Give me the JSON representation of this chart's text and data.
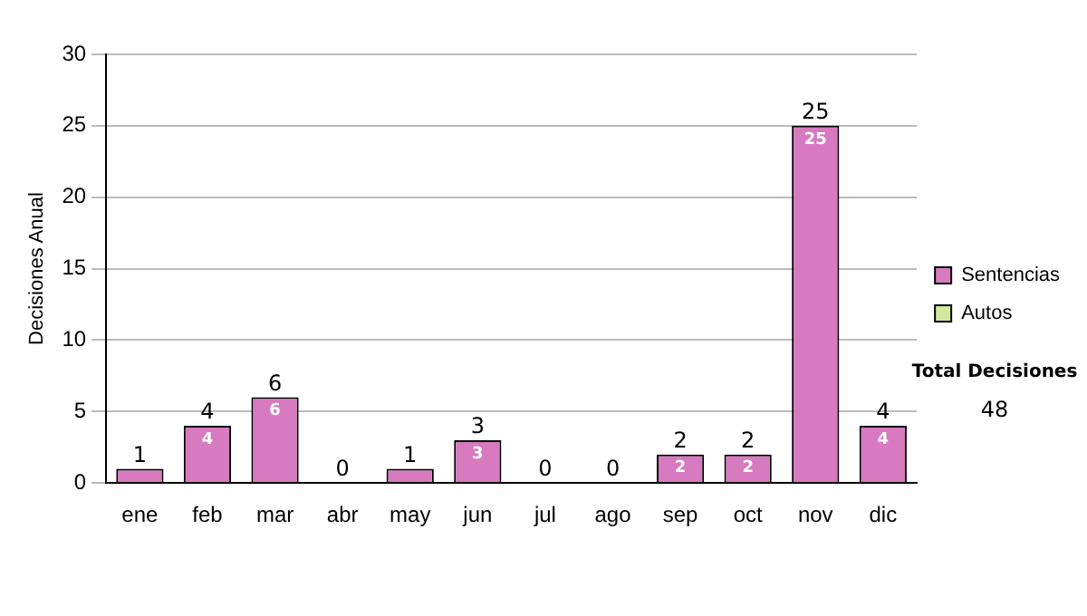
{
  "chart_data": {
    "type": "bar",
    "ylabel": "Decisiones Anual",
    "categories": [
      "ene",
      "feb",
      "mar",
      "abr",
      "may",
      "jun",
      "jul",
      "ago",
      "sep",
      "oct",
      "nov",
      "dic"
    ],
    "series": [
      {
        "name": "Sentencias",
        "color": "#d77ac0",
        "values": [
          1,
          4,
          6,
          0,
          1,
          3,
          0,
          0,
          2,
          2,
          25,
          4
        ],
        "value_labels": [
          null,
          "4",
          "6",
          null,
          null,
          "3",
          null,
          null,
          "2",
          "2",
          "25",
          "4"
        ]
      },
      {
        "name": "Autos",
        "color": "#d4e79e",
        "values": [
          0,
          0,
          0,
          0,
          0,
          0,
          0,
          0,
          0,
          0,
          0,
          0
        ]
      }
    ],
    "stacked": true,
    "totals": [
      "1",
      "4",
      "6",
      "0",
      "1",
      "3",
      "0",
      "0",
      "2",
      "2",
      "25",
      "4"
    ],
    "ylim": [
      0,
      30
    ],
    "yticks": [
      0,
      5,
      10,
      15,
      20,
      25,
      30
    ],
    "grid": "y",
    "legend": "right",
    "annotations": [
      "Total Decisiones",
      "48"
    ]
  }
}
